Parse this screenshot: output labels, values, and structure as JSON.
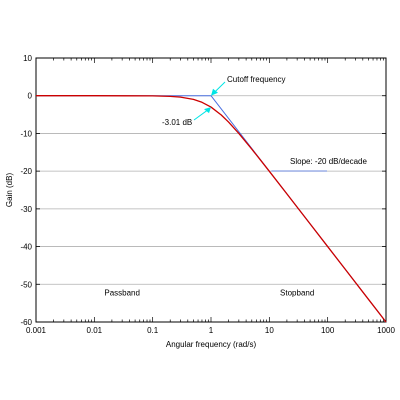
{
  "chart_data": {
    "type": "line",
    "title": "",
    "xlabel": "Angular frequency (rad/s)",
    "ylabel": "Gain (dB)",
    "xscale": "log",
    "xlim": [
      0.001,
      1000
    ],
    "ylim": [
      -60,
      10
    ],
    "grid": "horizontal",
    "legend": "none",
    "x_ticks": [
      {
        "value": 0.001,
        "label": "0.001"
      },
      {
        "value": 0.01,
        "label": "0.01"
      },
      {
        "value": 0.1,
        "label": "0.1"
      },
      {
        "value": 1,
        "label": "1"
      },
      {
        "value": 10,
        "label": "10"
      },
      {
        "value": 100,
        "label": "100"
      },
      {
        "value": 1000,
        "label": "1000"
      }
    ],
    "y_ticks": [
      {
        "value": 10,
        "label": "10"
      },
      {
        "value": 0,
        "label": "0"
      },
      {
        "value": -10,
        "label": "-10"
      },
      {
        "value": -20,
        "label": "-20"
      },
      {
        "value": -30,
        "label": "-30"
      },
      {
        "value": -40,
        "label": "-40"
      },
      {
        "value": -50,
        "label": "-50"
      },
      {
        "value": -60,
        "label": "-60"
      }
    ],
    "series": [
      {
        "color": "#cc0000",
        "style": "solid",
        "x": [
          0.001,
          0.01,
          0.1,
          0.2,
          0.3,
          0.5,
          0.7,
          1,
          1.5,
          2,
          3,
          5,
          7,
          10,
          20,
          50,
          100,
          200,
          500,
          1000
        ],
        "y": [
          0,
          0,
          -0.04,
          -0.17,
          -0.37,
          -0.97,
          -1.74,
          -3.01,
          -5.12,
          -6.99,
          -10.0,
          -14.15,
          -17.0,
          -20.04,
          -26.03,
          -33.98,
          -40.0,
          -46.02,
          -53.98,
          -60.0
        ]
      },
      {
        "color": "#4a6fe0",
        "style": "solid",
        "x": [
          0.001,
          1,
          1000
        ],
        "y": [
          0,
          0,
          -60
        ]
      }
    ],
    "annotations": [
      {
        "text": "Cutoff frequency",
        "x": 1,
        "y": 0,
        "arrow_color": "#00e5e5"
      },
      {
        "text": "-3.01 dB",
        "x": 1,
        "y": -3.01,
        "arrow_color": "#00e5e5"
      },
      {
        "text": "Slope: -20 dB/decade",
        "x": 10,
        "y": -20
      },
      {
        "text": "Passband",
        "x": 0.03,
        "y": -53
      },
      {
        "text": "Stopband",
        "x": 30,
        "y": -53
      }
    ]
  }
}
